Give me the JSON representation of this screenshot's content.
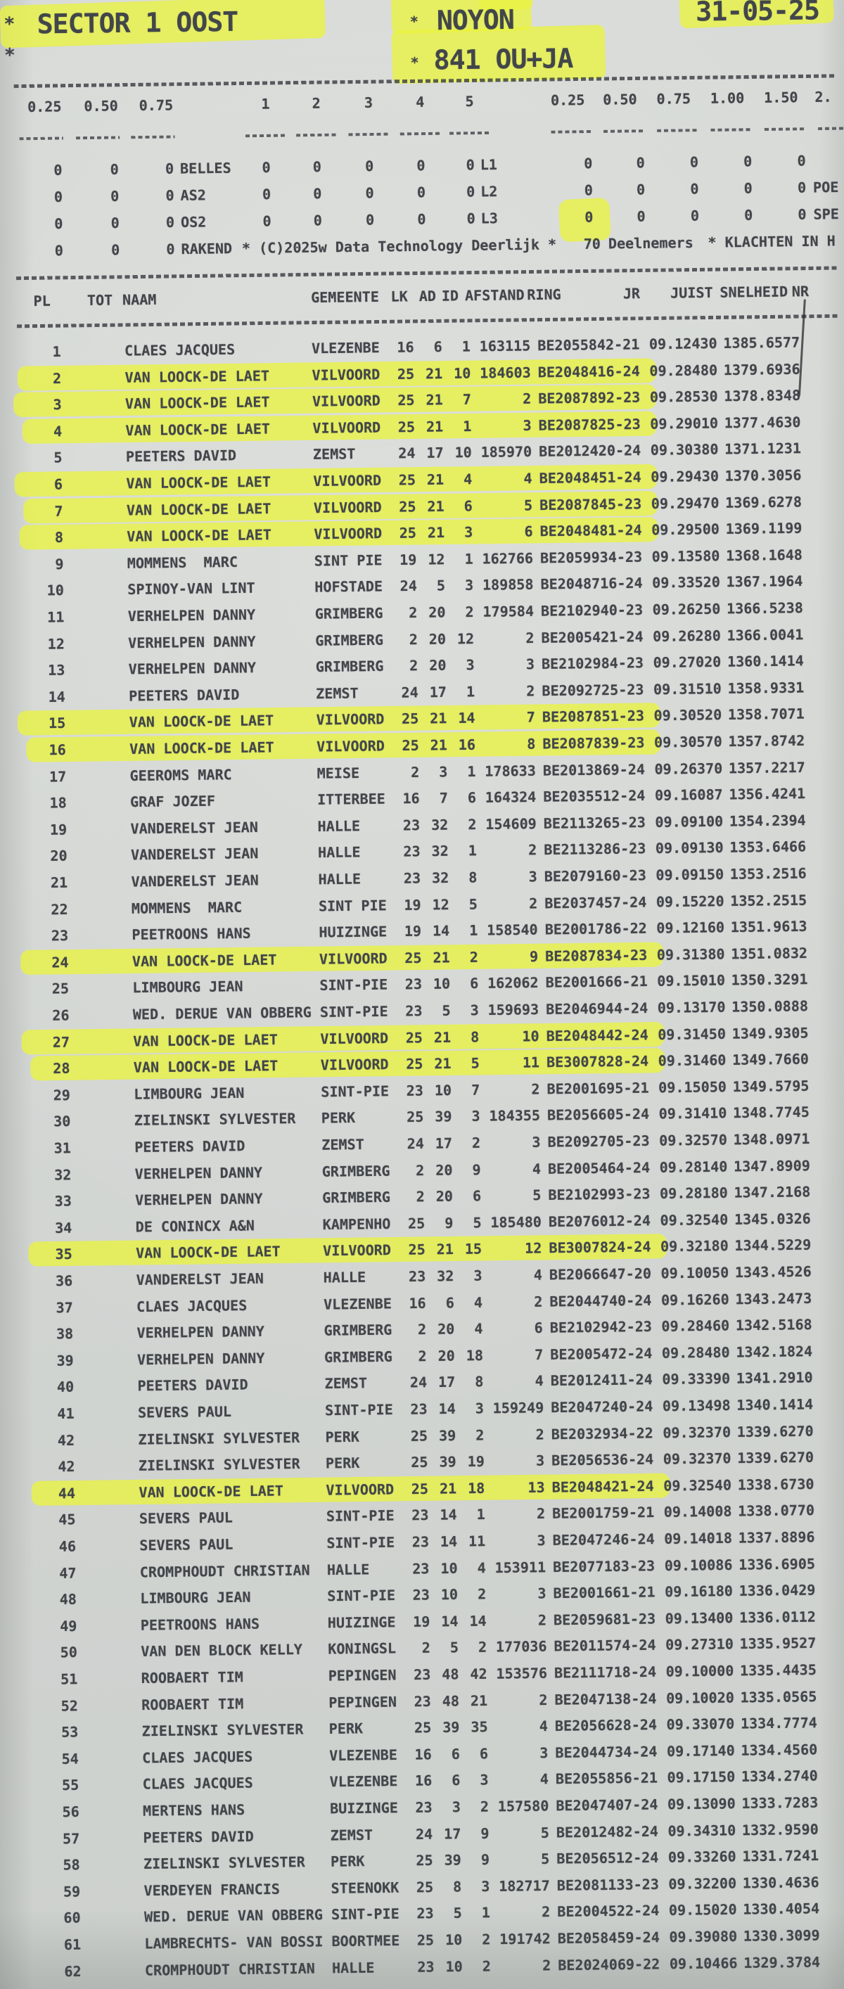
{
  "header": {
    "star_left_top": "*",
    "star_left_bottom": "*",
    "sector": "SECTOR 1 OOST",
    "race_star": "*",
    "race": "NOYON",
    "entry_star": "*",
    "entry": "841 OU+JA",
    "date": "31-05-25"
  },
  "stats": {
    "left_columns": [
      "0.25",
      "0.50",
      "0.75"
    ],
    "mid_columns": [
      "1",
      "2",
      "3",
      "4",
      "5"
    ],
    "right_columns": [
      "0.25",
      "0.50",
      "0.75",
      "1.00",
      "1.50",
      "2."
    ],
    "rows": [
      {
        "left": [
          "0",
          "0",
          "0"
        ],
        "label": "BELLES",
        "mid": [
          "0",
          "0",
          "0",
          "0",
          "0"
        ],
        "tag": "L1",
        "right": [
          "0",
          "0",
          "0",
          "0",
          "0"
        ],
        "right_label": ""
      },
      {
        "left": [
          "0",
          "0",
          "0"
        ],
        "label": "AS2",
        "mid": [
          "0",
          "0",
          "0",
          "0",
          "0"
        ],
        "tag": "L2",
        "right": [
          "0",
          "0",
          "0",
          "0",
          "0"
        ],
        "right_label": "POE"
      },
      {
        "left": [
          "0",
          "0",
          "0"
        ],
        "label": "OS2",
        "mid": [
          "0",
          "0",
          "0",
          "0",
          "0"
        ],
        "tag": "L3",
        "right": [
          "0",
          "0",
          "0",
          "0",
          "0"
        ],
        "right_label": "SPE"
      }
    ],
    "footer": {
      "left": [
        "0",
        "0",
        "0"
      ],
      "label": "RAKEND",
      "copyright": "* (C)2025w Data Technology Deerlijk *",
      "participants_count": "70",
      "participants_label": "Deelnemers",
      "complaints": "* KLACHTEN IN H"
    }
  },
  "table": {
    "headers": [
      "PL",
      "TOT",
      "NAAM",
      "GEMEENTE",
      "LK",
      "AD",
      "ID",
      "AFSTAND",
      "RING",
      "JR",
      "JUIST",
      "SNELHEID",
      "NR"
    ],
    "rows": [
      [
        "1",
        "CLAES JACQUES",
        "VLEZENBE",
        "16",
        "6",
        "1",
        "163115",
        "BE2055842-21",
        "09.12430",
        "1385.6577",
        0
      ],
      [
        "2",
        "VAN LOOCK-DE LAET",
        "VILVOORD",
        "25",
        "21",
        "10",
        "184603",
        "BE2048416-24",
        "09.28480",
        "1379.6936",
        1
      ],
      [
        "3",
        "VAN LOOCK-DE LAET",
        "VILVOORD",
        "25",
        "21",
        "7",
        "2",
        "BE2087892-23",
        "09.28530",
        "1378.8348",
        1
      ],
      [
        "4",
        "VAN LOOCK-DE LAET",
        "VILVOORD",
        "25",
        "21",
        "1",
        "3",
        "BE2087825-23",
        "09.29010",
        "1377.4630",
        1
      ],
      [
        "5",
        "PEETERS DAVID",
        "ZEMST",
        "24",
        "17",
        "10",
        "185970",
        "BE2012420-24",
        "09.30380",
        "1371.1231",
        0
      ],
      [
        "6",
        "VAN LOOCK-DE LAET",
        "VILVOORD",
        "25",
        "21",
        "4",
        "4",
        "BE2048451-24",
        "09.29430",
        "1370.3056",
        1
      ],
      [
        "7",
        "VAN LOOCK-DE LAET",
        "VILVOORD",
        "25",
        "21",
        "6",
        "5",
        "BE2087845-23",
        "09.29470",
        "1369.6278",
        1
      ],
      [
        "8",
        "VAN LOOCK-DE LAET",
        "VILVOORD",
        "25",
        "21",
        "3",
        "6",
        "BE2048481-24",
        "09.29500",
        "1369.1199",
        1
      ],
      [
        "9",
        "MOMMENS  MARC",
        "SINT PIE",
        "19",
        "12",
        "1",
        "162766",
        "BE2059934-23",
        "09.13580",
        "1368.1648",
        0
      ],
      [
        "10",
        "SPINOY-VAN LINT",
        "HOFSTADE",
        "24",
        "5",
        "3",
        "189858",
        "BE2048716-24",
        "09.33520",
        "1367.1964",
        0
      ],
      [
        "11",
        "VERHELPEN DANNY",
        "GRIMBERG",
        "2",
        "20",
        "2",
        "179584",
        "BE2102940-23",
        "09.26250",
        "1366.5238",
        0
      ],
      [
        "12",
        "VERHELPEN DANNY",
        "GRIMBERG",
        "2",
        "20",
        "12",
        "2",
        "BE2005421-24",
        "09.26280",
        "1366.0041",
        0
      ],
      [
        "13",
        "VERHELPEN DANNY",
        "GRIMBERG",
        "2",
        "20",
        "3",
        "3",
        "BE2102984-23",
        "09.27020",
        "1360.1414",
        0
      ],
      [
        "14",
        "PEETERS DAVID",
        "ZEMST",
        "24",
        "17",
        "1",
        "2",
        "BE2092725-23",
        "09.31510",
        "1358.9331",
        0
      ],
      [
        "15",
        "VAN LOOCK-DE LAET",
        "VILVOORD",
        "25",
        "21",
        "14",
        "7",
        "BE2087851-23",
        "09.30520",
        "1358.7071",
        1
      ],
      [
        "16",
        "VAN LOOCK-DE LAET",
        "VILVOORD",
        "25",
        "21",
        "16",
        "8",
        "BE2087839-23",
        "09.30570",
        "1357.8742",
        1
      ],
      [
        "17",
        "GEEROMS MARC",
        "MEISE",
        "2",
        "3",
        "1",
        "178633",
        "BE2013869-24",
        "09.26370",
        "1357.2217",
        0
      ],
      [
        "18",
        "GRAF JOZEF",
        "ITTERBEE",
        "16",
        "7",
        "6",
        "164324",
        "BE2035512-24",
        "09.16087",
        "1356.4241",
        0
      ],
      [
        "19",
        "VANDERELST JEAN",
        "HALLE",
        "23",
        "32",
        "2",
        "154609",
        "BE2113265-23",
        "09.09100",
        "1354.2394",
        0
      ],
      [
        "20",
        "VANDERELST JEAN",
        "HALLE",
        "23",
        "32",
        "1",
        "2",
        "BE2113286-23",
        "09.09130",
        "1353.6466",
        0
      ],
      [
        "21",
        "VANDERELST JEAN",
        "HALLE",
        "23",
        "32",
        "8",
        "3",
        "BE2079160-23",
        "09.09150",
        "1353.2516",
        0
      ],
      [
        "22",
        "MOMMENS  MARC",
        "SINT PIE",
        "19",
        "12",
        "5",
        "2",
        "BE2037457-24",
        "09.15220",
        "1352.2515",
        0
      ],
      [
        "23",
        "PEETROONS HANS",
        "HUIZINGE",
        "19",
        "14",
        "1",
        "158540",
        "BE2001786-22",
        "09.12160",
        "1351.9613",
        0
      ],
      [
        "24",
        "VAN LOOCK-DE LAET",
        "VILVOORD",
        "25",
        "21",
        "2",
        "9",
        "BE2087834-23",
        "09.31380",
        "1351.0832",
        1
      ],
      [
        "25",
        "LIMBOURG JEAN",
        "SINT-PIE",
        "23",
        "10",
        "6",
        "162062",
        "BE2001666-21",
        "09.15010",
        "1350.3291",
        0
      ],
      [
        "26",
        "WED. DERUE VAN OBBERG",
        "SINT-PIE",
        "23",
        "5",
        "3",
        "159693",
        "BE2046944-24",
        "09.13170",
        "1350.0888",
        0
      ],
      [
        "27",
        "VAN LOOCK-DE LAET",
        "VILVOORD",
        "25",
        "21",
        "8",
        "10",
        "BE2048442-24",
        "09.31450",
        "1349.9305",
        1
      ],
      [
        "28",
        "VAN LOOCK-DE LAET",
        "VILVOORD",
        "25",
        "21",
        "5",
        "11",
        "BE3007828-24",
        "09.31460",
        "1349.7660",
        1
      ],
      [
        "29",
        "LIMBOURG JEAN",
        "SINT-PIE",
        "23",
        "10",
        "7",
        "2",
        "BE2001695-21",
        "09.15050",
        "1349.5795",
        0
      ],
      [
        "30",
        "ZIELINSKI SYLVESTER",
        "PERK",
        "25",
        "39",
        "3",
        "184355",
        "BE2056605-24",
        "09.31410",
        "1348.7745",
        0
      ],
      [
        "31",
        "PEETERS DAVID",
        "ZEMST",
        "24",
        "17",
        "2",
        "3",
        "BE2092705-23",
        "09.32570",
        "1348.0971",
        0
      ],
      [
        "32",
        "VERHELPEN DANNY",
        "GRIMBERG",
        "2",
        "20",
        "9",
        "4",
        "BE2005464-24",
        "09.28140",
        "1347.8909",
        0
      ],
      [
        "33",
        "VERHELPEN DANNY",
        "GRIMBERG",
        "2",
        "20",
        "6",
        "5",
        "BE2102993-23",
        "09.28180",
        "1347.2168",
        0
      ],
      [
        "34",
        "DE CONINCX A&N",
        "KAMPENHO",
        "25",
        "9",
        "5",
        "185480",
        "BE2076012-24",
        "09.32540",
        "1345.0326",
        0
      ],
      [
        "35",
        "VAN LOOCK-DE LAET",
        "VILVOORD",
        "25",
        "21",
        "15",
        "12",
        "BE3007824-24",
        "09.32180",
        "1344.5229",
        1
      ],
      [
        "36",
        "VANDERELST JEAN",
        "HALLE",
        "23",
        "32",
        "3",
        "4",
        "BE2066647-20",
        "09.10050",
        "1343.4526",
        0
      ],
      [
        "37",
        "CLAES JACQUES",
        "VLEZENBE",
        "16",
        "6",
        "4",
        "2",
        "BE2044740-24",
        "09.16260",
        "1343.2473",
        0
      ],
      [
        "38",
        "VERHELPEN DANNY",
        "GRIMBERG",
        "2",
        "20",
        "4",
        "6",
        "BE2102942-23",
        "09.28460",
        "1342.5168",
        0
      ],
      [
        "39",
        "VERHELPEN DANNY",
        "GRIMBERG",
        "2",
        "20",
        "18",
        "7",
        "BE2005472-24",
        "09.28480",
        "1342.1824",
        0
      ],
      [
        "40",
        "PEETERS DAVID",
        "ZEMST",
        "24",
        "17",
        "8",
        "4",
        "BE2012411-24",
        "09.33390",
        "1341.2910",
        0
      ],
      [
        "41",
        "SEVERS PAUL",
        "SINT-PIE",
        "23",
        "14",
        "3",
        "159249",
        "BE2047240-24",
        "09.13498",
        "1340.1414",
        0
      ],
      [
        "42",
        "ZIELINSKI SYLVESTER",
        "PERK",
        "25",
        "39",
        "2",
        "2",
        "BE2032934-22",
        "09.32370",
        "1339.6270",
        0
      ],
      [
        "42",
        "ZIELINSKI SYLVESTER",
        "PERK",
        "25",
        "39",
        "19",
        "3",
        "BE2056536-24",
        "09.32370",
        "1339.6270",
        0
      ],
      [
        "44",
        "VAN LOOCK-DE LAET",
        "VILVOORD",
        "25",
        "21",
        "18",
        "13",
        "BE2048421-24",
        "09.32540",
        "1338.6730",
        1
      ],
      [
        "45",
        "SEVERS PAUL",
        "SINT-PIE",
        "23",
        "14",
        "1",
        "2",
        "BE2001759-21",
        "09.14008",
        "1338.0770",
        0
      ],
      [
        "46",
        "SEVERS PAUL",
        "SINT-PIE",
        "23",
        "14",
        "11",
        "3",
        "BE2047246-24",
        "09.14018",
        "1337.8896",
        0
      ],
      [
        "47",
        "CROMPHOUDT CHRISTIAN",
        "HALLE",
        "23",
        "10",
        "4",
        "153911",
        "BE2077183-23",
        "09.10086",
        "1336.6905",
        0
      ],
      [
        "48",
        "LIMBOURG JEAN",
        "SINT-PIE",
        "23",
        "10",
        "2",
        "3",
        "BE2001661-21",
        "09.16180",
        "1336.0429",
        0
      ],
      [
        "49",
        "PEETROONS HANS",
        "HUIZINGE",
        "19",
        "14",
        "14",
        "2",
        "BE2059681-23",
        "09.13400",
        "1336.0112",
        0
      ],
      [
        "50",
        "VAN DEN BLOCK KELLY",
        "KONINGSL",
        "2",
        "5",
        "2",
        "177036",
        "BE2011574-24",
        "09.27310",
        "1335.9527",
        0
      ],
      [
        "51",
        "ROOBAERT TIM",
        "PEPINGEN",
        "23",
        "48",
        "42",
        "153576",
        "BE2111718-24",
        "09.10000",
        "1335.4435",
        0
      ],
      [
        "52",
        "ROOBAERT TIM",
        "PEPINGEN",
        "23",
        "48",
        "21",
        "2",
        "BE2047138-24",
        "09.10020",
        "1335.0565",
        0
      ],
      [
        "53",
        "ZIELINSKI SYLVESTER",
        "PERK",
        "25",
        "39",
        "35",
        "4",
        "BE2056628-24",
        "09.33070",
        "1334.7774",
        0
      ],
      [
        "54",
        "CLAES JACQUES",
        "VLEZENBE",
        "16",
        "6",
        "6",
        "3",
        "BE2044734-24",
        "09.17140",
        "1334.4560",
        0
      ],
      [
        "55",
        "CLAES JACQUES",
        "VLEZENBE",
        "16",
        "6",
        "3",
        "4",
        "BE2055856-21",
        "09.17150",
        "1334.2740",
        0
      ],
      [
        "56",
        "MERTENS HANS",
        "BUIZINGE",
        "23",
        "3",
        "2",
        "157580",
        "BE2047407-24",
        "09.13090",
        "1333.7283",
        0
      ],
      [
        "57",
        "PEETERS DAVID",
        "ZEMST",
        "24",
        "17",
        "9",
        "5",
        "BE2012482-24",
        "09.34310",
        "1332.9590",
        0
      ],
      [
        "58",
        "ZIELINSKI SYLVESTER",
        "PERK",
        "25",
        "39",
        "9",
        "5",
        "BE2056512-24",
        "09.33260",
        "1331.7241",
        0
      ],
      [
        "59",
        "VERDEYEN FRANCIS",
        "STEENOKK",
        "25",
        "8",
        "3",
        "182717",
        "BE2081133-23",
        "09.32200",
        "1330.4636",
        0
      ],
      [
        "60",
        "WED. DERUE VAN OBBERG",
        "SINT-PIE",
        "23",
        "5",
        "1",
        "2",
        "BE2004522-24",
        "09.15020",
        "1330.4054",
        0
      ],
      [
        "61",
        "LAMBRECHTS- VAN BOSSI",
        "BOORTMEE",
        "25",
        "10",
        "2",
        "191742",
        "BE2058459-24",
        "09.39080",
        "1330.3099",
        0
      ],
      [
        "62",
        "CROMPHOUDT CHRISTIAN",
        "HALLE",
        "23",
        "10",
        "2",
        "2",
        "BE2024069-22",
        "09.10466",
        "1329.3784",
        0
      ]
    ]
  },
  "colors": {
    "paper": "#d3d6d3",
    "ink": "#42464a",
    "highlight": "#e9f243"
  }
}
